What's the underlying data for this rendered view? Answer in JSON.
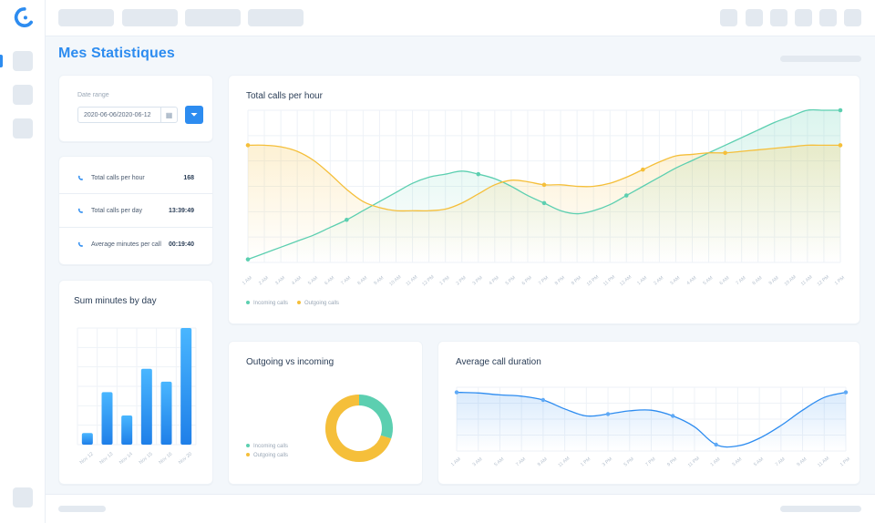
{
  "page": {
    "title": "Mes Statistiques"
  },
  "filters": {
    "date_range_label": "Date range",
    "date_range_value": "2020-06-06/2020-06-12"
  },
  "stats": [
    {
      "label": "Total calls per hour",
      "value": "168"
    },
    {
      "label": "Total calls per day",
      "value": "13:39:49"
    },
    {
      "label": "Average minutes per call",
      "value": "00:19:40"
    }
  ],
  "cards": {
    "sum_minutes_by_day": "Sum minutes by day",
    "total_calls_per_hour": "Total calls per hour",
    "outgoing_vs_incoming": "Outgoing vs incoming",
    "average_call_duration": "Average call duration"
  },
  "legend": {
    "incoming": "Incoming calls",
    "outgoing": "Outgoing calls"
  },
  "colors": {
    "accent": "#2d8cf0",
    "incoming": "#5ccfb0",
    "outgoing": "#f5bf3a"
  },
  "chart_data": [
    {
      "type": "line",
      "title": "Total calls per hour",
      "x": [
        "1 AM",
        "2 AM",
        "3 AM",
        "4 AM",
        "5 AM",
        "6 AM",
        "7 AM",
        "8 AM",
        "9 AM",
        "10 AM",
        "11 AM",
        "12 PM",
        "1 PM",
        "2 PM",
        "3 PM",
        "4 PM",
        "5 PM",
        "6 PM",
        "7 PM",
        "8 PM",
        "9 PM",
        "10 PM",
        "11 PM",
        "12 AM",
        "1 AM",
        "2 AM",
        "3 AM",
        "4 AM",
        "5 AM",
        "6 AM",
        "7 AM",
        "8 AM",
        "9 AM",
        "10 AM",
        "11 AM",
        "12 PM",
        "1 PM"
      ],
      "ylim": [
        0,
        100
      ],
      "series": [
        {
          "name": "Incoming calls",
          "values": [
            2,
            6,
            10,
            14,
            18,
            23,
            28,
            34,
            40,
            46,
            52,
            56,
            58,
            60,
            58,
            55,
            50,
            44,
            39,
            34,
            32,
            34,
            38,
            44,
            50,
            56,
            62,
            67,
            72,
            77,
            82,
            87,
            92,
            96,
            100,
            100,
            100
          ]
        },
        {
          "name": "Outgoing calls",
          "values": [
            77,
            77,
            76,
            73,
            67,
            58,
            48,
            40,
            36,
            34,
            34,
            34,
            35,
            39,
            45,
            51,
            54,
            53,
            51,
            51,
            50,
            50,
            52,
            56,
            61,
            66,
            70,
            71,
            72,
            72,
            73,
            74,
            75,
            76,
            77,
            77,
            77
          ]
        }
      ],
      "legend": [
        "Incoming calls",
        "Outgoing calls"
      ],
      "grid": true
    },
    {
      "type": "bar",
      "title": "Sum minutes by day",
      "categories": [
        "Nov 12",
        "Nov 13",
        "Nov 14",
        "Nov 15",
        "Nov 16",
        "Nov 20"
      ],
      "values": [
        10,
        45,
        25,
        65,
        54,
        100
      ],
      "ylim": [
        0,
        100
      ],
      "grid": true
    },
    {
      "type": "pie",
      "title": "Outgoing vs incoming",
      "labels": [
        "Incoming calls",
        "Outgoing calls"
      ],
      "values": [
        30,
        70
      ],
      "legend": [
        "Incoming calls",
        "Outgoing calls"
      ]
    },
    {
      "type": "area",
      "title": "Average call duration",
      "x": [
        "1 AM",
        "3 AM",
        "5 AM",
        "7 AM",
        "9 AM",
        "11 AM",
        "1 PM",
        "3 PM",
        "5 PM",
        "7 PM",
        "9 PM",
        "11 PM",
        "1 AM",
        "3 AM",
        "5 AM",
        "7 AM",
        "9 AM",
        "11 AM",
        "1 PM"
      ],
      "values": [
        92,
        91,
        88,
        86,
        80,
        66,
        55,
        58,
        63,
        64,
        55,
        38,
        10,
        8,
        20,
        40,
        64,
        84,
        92
      ],
      "ylim": [
        0,
        100
      ],
      "grid": true
    }
  ]
}
